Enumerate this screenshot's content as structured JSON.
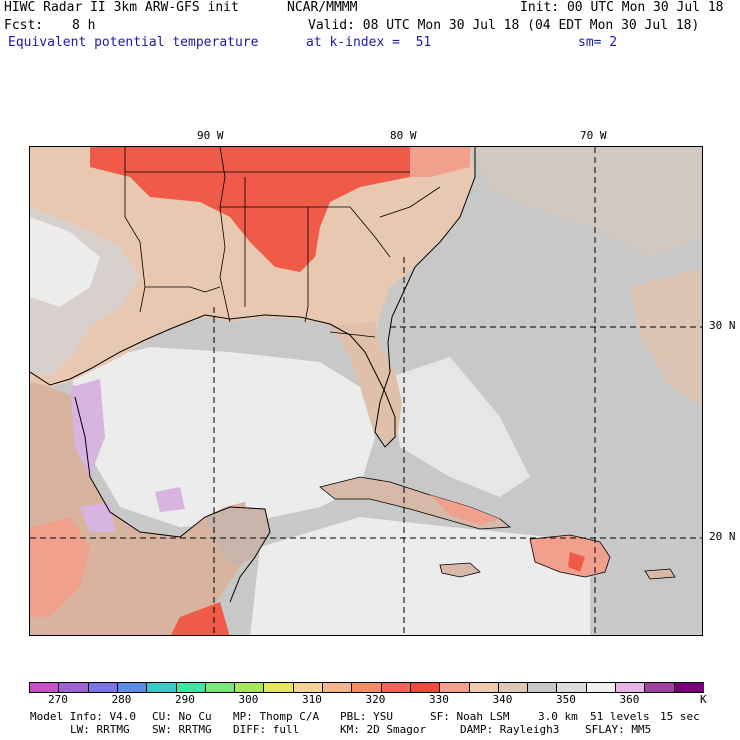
{
  "header": {
    "title_left": "HIWC Radar II 3km ARW-GFS init",
    "agency": "NCAR/MMMM",
    "init": "Init: 00 UTC Mon 30 Jul 18",
    "fcst_label": "Fcst:",
    "fcst_value": "8 h",
    "valid": "Valid: 08 UTC Mon 30 Jul 18 (04 EDT Mon 30 Jul 18)",
    "field": "Equivalent potential temperature",
    "level": "at k-index =  51",
    "smoothing": "sm= 2"
  },
  "map": {
    "lon_labels": [
      "90 W",
      "80 W",
      "70 W"
    ],
    "lat_labels": [
      "30 N",
      "20 N"
    ]
  },
  "colorbar": {
    "unit": "K",
    "ticks": [
      "270",
      "280",
      "290",
      "300",
      "310",
      "320",
      "330",
      "340",
      "350",
      "360"
    ],
    "colors": [
      "#c84fc8",
      "#a062d2",
      "#7c74e6",
      "#5a8ee6",
      "#3cc8c8",
      "#3ce6a0",
      "#78e678",
      "#a8e65a",
      "#e6e65a",
      "#f5d296",
      "#f5b48c",
      "#f58c64",
      "#f5645a",
      "#f5483c",
      "#f5a08c",
      "#f0c8aa",
      "#dcc8b4",
      "#c8c8c8",
      "#dcdcdc",
      "#f0f0f0",
      "#e6b4e6",
      "#a040a0",
      "#780078"
    ]
  },
  "footer": {
    "line1": [
      "Model Info: V4.0",
      "CU: No Cu",
      "MP: Thomp C/A",
      "PBL: YSU",
      "SF: Noah LSM",
      "3.0 km",
      "51 levels",
      "15 sec"
    ],
    "line2": [
      "LW: RRTMG",
      "SW: RRTMG",
      "DIFF: full",
      "KM: 2D Smagor",
      "DAMP: Rayleigh3",
      "SFLAY: MM5"
    ]
  }
}
